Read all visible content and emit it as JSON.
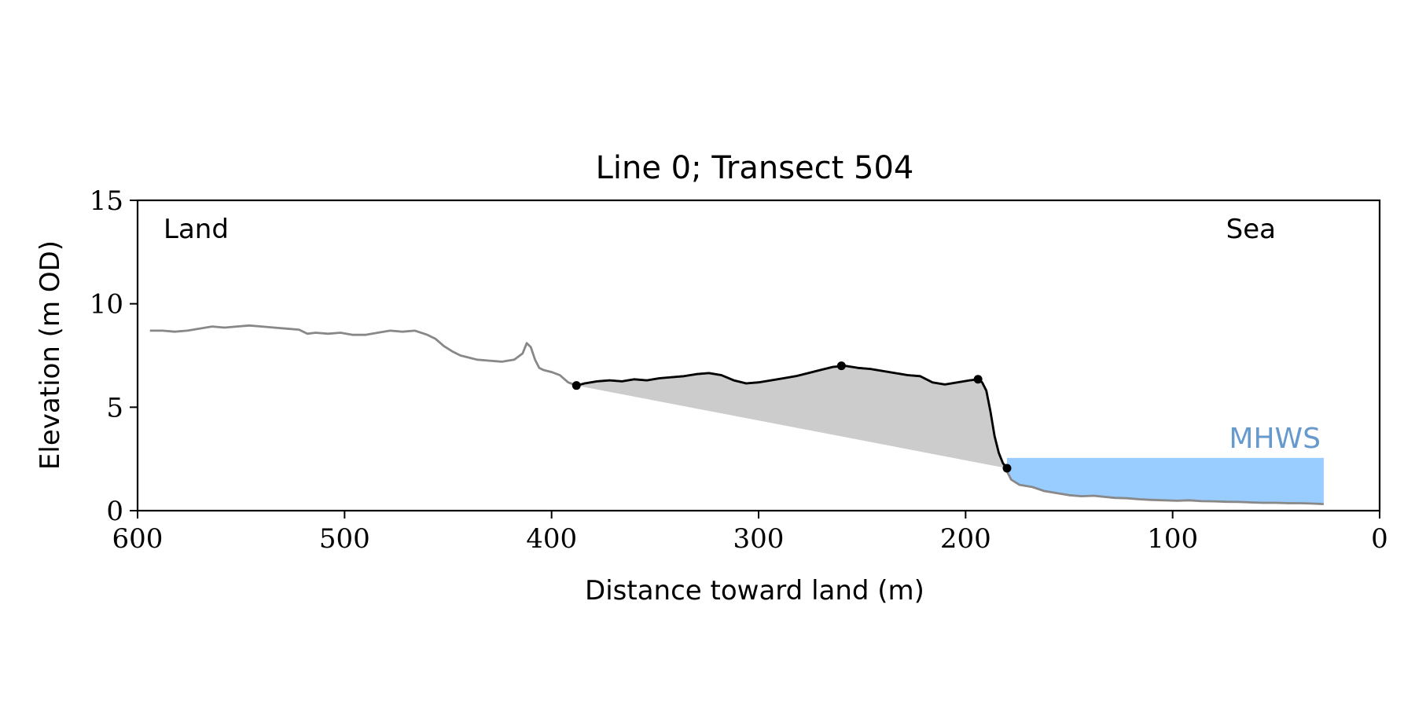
{
  "chart_data": {
    "type": "area",
    "title": "Line 0; Transect 504",
    "xlabel": "Distance toward land (m)",
    "ylabel": "Elevation (m OD)",
    "xlim": [
      600,
      0
    ],
    "ylim": [
      0,
      15
    ],
    "x_reversed": true,
    "xticks": [
      600,
      500,
      400,
      300,
      200,
      100,
      0
    ],
    "yticks": [
      0,
      5,
      10,
      15
    ],
    "grid": false,
    "annotations": {
      "left": "Land",
      "right": "Sea",
      "water_label": "MHWS"
    },
    "colors": {
      "profile": "#888888",
      "dune": "#000000",
      "dune_fill": "#cccccc",
      "water": "#99ccff",
      "water_label": "#6699cc",
      "axes": "#000000"
    },
    "mhws": {
      "level": 2.55,
      "x_from": 180,
      "x_to": 27
    },
    "series": [
      {
        "x": [
          594,
          588,
          582,
          576,
          570,
          564,
          558,
          552,
          546,
          540,
          534,
          528,
          522,
          518,
          514,
          508,
          502,
          496,
          490,
          484,
          478,
          472,
          466,
          460,
          456,
          452,
          448,
          444,
          440,
          436,
          430,
          424,
          418,
          414,
          412,
          410,
          408,
          406,
          404,
          400,
          396,
          392,
          388,
          384,
          378,
          372,
          366,
          360,
          354,
          348,
          342,
          336,
          330,
          324,
          318,
          312,
          306,
          300,
          294,
          288,
          282,
          276,
          270,
          264,
          258,
          252,
          246,
          240,
          234,
          228,
          222,
          216,
          210,
          204,
          198,
          194,
          192,
          190,
          188,
          186,
          184,
          182,
          180,
          178,
          174,
          168,
          162,
          156,
          150,
          144,
          138,
          134,
          128,
          122,
          116,
          110,
          104,
          98,
          92,
          86,
          80,
          74,
          68,
          62,
          56,
          50,
          44,
          38,
          32,
          27
        ],
        "y": [
          8.7,
          8.7,
          8.65,
          8.7,
          8.8,
          8.9,
          8.85,
          8.9,
          8.95,
          8.9,
          8.85,
          8.8,
          8.75,
          8.55,
          8.6,
          8.55,
          8.6,
          8.5,
          8.5,
          8.6,
          8.7,
          8.65,
          8.7,
          8.5,
          8.3,
          7.95,
          7.7,
          7.5,
          7.4,
          7.3,
          7.25,
          7.2,
          7.3,
          7.6,
          8.1,
          7.9,
          7.3,
          6.9,
          6.8,
          6.7,
          6.55,
          6.2,
          6.05,
          6.15,
          6.25,
          6.3,
          6.25,
          6.35,
          6.3,
          6.4,
          6.45,
          6.5,
          6.6,
          6.65,
          6.55,
          6.3,
          6.15,
          6.2,
          6.3,
          6.4,
          6.5,
          6.65,
          6.8,
          6.95,
          7.0,
          6.9,
          6.85,
          6.75,
          6.65,
          6.55,
          6.5,
          6.2,
          6.1,
          6.2,
          6.3,
          6.35,
          6.2,
          5.8,
          4.8,
          3.6,
          2.8,
          2.3,
          1.9,
          1.5,
          1.25,
          1.15,
          0.95,
          0.85,
          0.75,
          0.7,
          0.72,
          0.68,
          0.62,
          0.6,
          0.55,
          0.52,
          0.5,
          0.48,
          0.5,
          0.46,
          0.45,
          0.43,
          0.42,
          0.4,
          0.38,
          0.38,
          0.36,
          0.36,
          0.34,
          0.32
        ]
      },
      {
        "x": [
          388,
          384,
          378,
          372,
          366,
          360,
          354,
          348,
          342,
          336,
          330,
          324,
          318,
          312,
          306,
          300,
          294,
          288,
          282,
          276,
          270,
          264,
          258,
          252,
          246,
          240,
          234,
          228,
          222,
          216,
          210,
          204,
          198,
          194,
          192,
          190,
          188,
          186,
          184,
          182,
          180
        ],
        "y": [
          6.05,
          6.15,
          6.25,
          6.3,
          6.25,
          6.35,
          6.3,
          6.4,
          6.45,
          6.5,
          6.6,
          6.65,
          6.55,
          6.3,
          6.15,
          6.2,
          6.3,
          6.4,
          6.5,
          6.65,
          6.8,
          6.95,
          7.0,
          6.9,
          6.85,
          6.75,
          6.65,
          6.55,
          6.5,
          6.2,
          6.1,
          6.2,
          6.3,
          6.35,
          6.2,
          5.8,
          4.8,
          3.6,
          2.8,
          2.3,
          2.05
        ]
      }
    ],
    "markers": [
      {
        "x": 388,
        "y": 6.05
      },
      {
        "x": 260,
        "y": 7.0
      },
      {
        "x": 194,
        "y": 6.35
      },
      {
        "x": 180,
        "y": 2.05
      }
    ],
    "toe_line": {
      "x": [
        388,
        180
      ],
      "y": [
        6.05,
        2.05
      ]
    }
  }
}
